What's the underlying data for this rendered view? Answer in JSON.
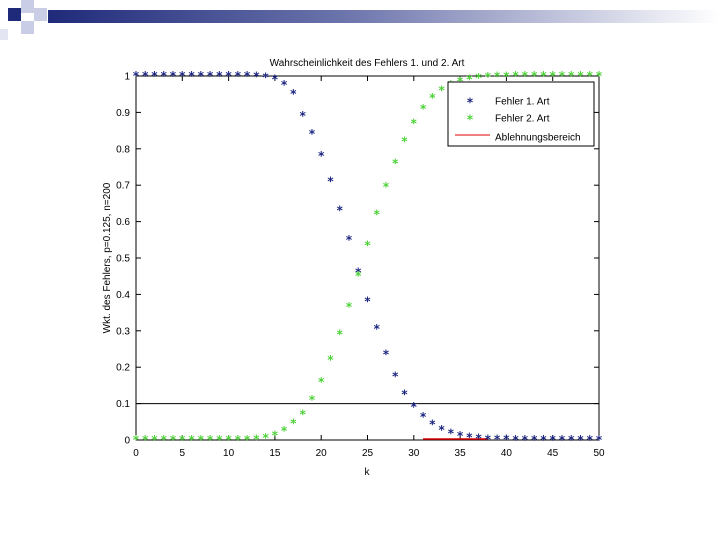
{
  "colors": {
    "series1": "#1a237e",
    "series2": "#4cd137",
    "reject": "#e00000",
    "decor_dark": "#1f2a7a",
    "decor_light": "#c9cde6"
  },
  "chart_data": {
    "type": "scatter",
    "title": "Wahrscheinlichkeit des Fehlers 1. und 2. Art",
    "xlabel": "k",
    "ylabel": "Wkt. des Fehlers, p=0.125, n=200",
    "xlim": [
      0,
      50
    ],
    "ylim": [
      0,
      1
    ],
    "xticks": [
      "0",
      "5",
      "10",
      "15",
      "20",
      "25",
      "30",
      "35",
      "40",
      "45",
      "50"
    ],
    "yticks": [
      "0",
      "0.1",
      "0.2",
      "0.3",
      "0.4",
      "0.5",
      "0.6",
      "0.7",
      "0.8",
      "0.9",
      "1"
    ],
    "xtick_values": [
      0,
      5,
      10,
      15,
      20,
      25,
      30,
      35,
      40,
      45,
      50
    ],
    "ytick_values": [
      0,
      0.1,
      0.2,
      0.3,
      0.4,
      0.5,
      0.6,
      0.7,
      0.8,
      0.9,
      1
    ],
    "hline": 0.1,
    "grid": false,
    "legend_position": "top-right",
    "legend": [
      "Fehler 1. Art",
      "Fehler 2. Art",
      "Ablehnungsbereich"
    ],
    "marker": "*",
    "x": [
      0,
      1,
      2,
      3,
      4,
      5,
      6,
      7,
      8,
      9,
      10,
      11,
      12,
      13,
      14,
      15,
      16,
      17,
      18,
      19,
      20,
      21,
      22,
      23,
      24,
      25,
      26,
      27,
      28,
      29,
      30,
      31,
      32,
      33,
      34,
      35,
      36,
      37,
      38,
      39,
      40,
      41,
      42,
      43,
      44,
      45,
      46,
      47,
      48,
      49,
      50
    ],
    "series": [
      {
        "name": "Fehler 1. Art",
        "values": [
          1,
          1,
          1,
          1,
          1,
          1,
          1,
          1,
          1,
          1,
          1,
          1,
          1,
          0.999,
          0.996,
          0.99,
          0.975,
          0.95,
          0.89,
          0.84,
          0.78,
          0.71,
          0.63,
          0.55,
          0.46,
          0.38,
          0.305,
          0.235,
          0.175,
          0.125,
          0.09,
          0.063,
          0.043,
          0.028,
          0.018,
          0.011,
          0.007,
          0.004,
          0.002,
          0.001,
          0.001,
          0,
          0,
          0,
          0,
          0,
          0,
          0,
          0,
          0,
          0
        ]
      },
      {
        "name": "Fehler 2. Art",
        "values": [
          0,
          0,
          0,
          0,
          0,
          0,
          0,
          0,
          0,
          0,
          0,
          0,
          0,
          0.002,
          0.005,
          0.012,
          0.025,
          0.045,
          0.07,
          0.11,
          0.16,
          0.22,
          0.29,
          0.365,
          0.45,
          0.535,
          0.62,
          0.695,
          0.76,
          0.82,
          0.87,
          0.91,
          0.94,
          0.96,
          0.975,
          0.985,
          0.99,
          0.995,
          0.997,
          0.998,
          0.999,
          1,
          1,
          1,
          1,
          1,
          1,
          1,
          1,
          1,
          1
        ]
      }
    ],
    "rejection_region": [
      31,
      38
    ]
  }
}
